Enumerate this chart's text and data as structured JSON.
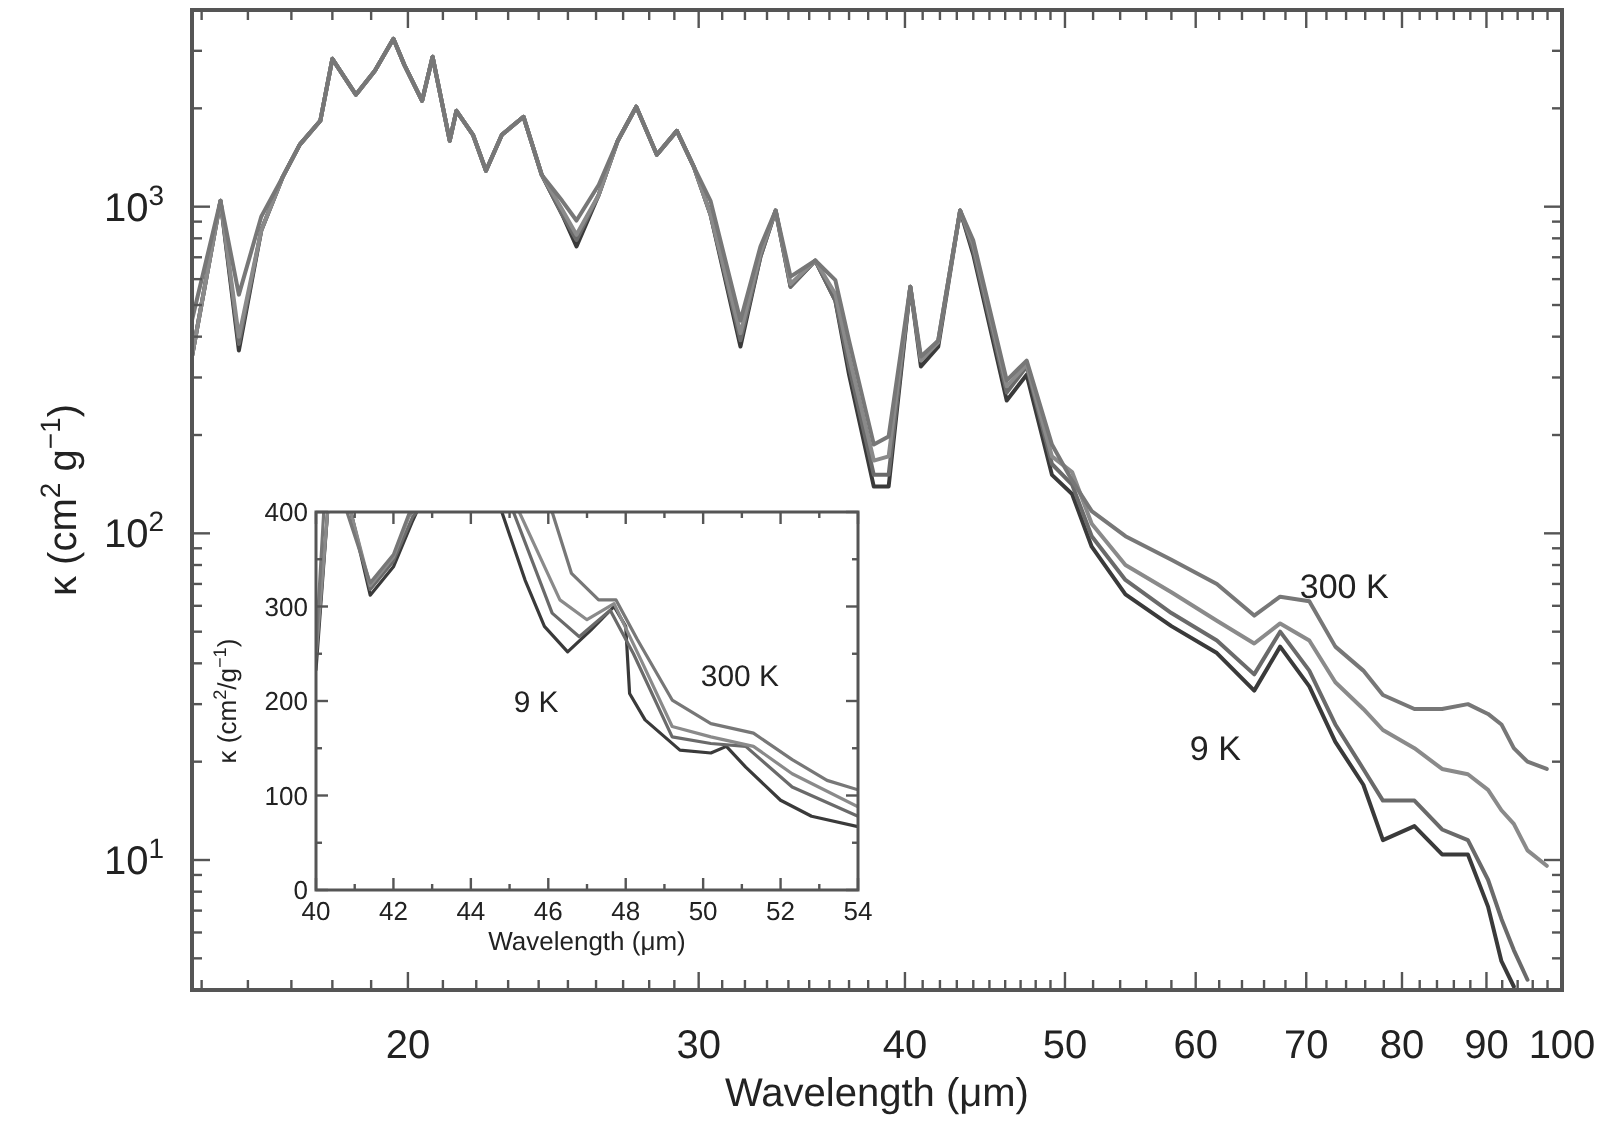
{
  "chart_data": [
    {
      "type": "line",
      "xlabel": "Wavelength (μm)",
      "ylabel": "κ (cm$^{2}$ g$^{−1}$)",
      "log": "xy",
      "xlim": [
        14.8,
        100
      ],
      "ylim": [
        4,
        4000
      ],
      "xticks": [
        {
          "value": 15,
          "label": null
        },
        {
          "value": 16,
          "label": null
        },
        {
          "value": 17,
          "label": null
        },
        {
          "value": 18,
          "label": null
        },
        {
          "value": 19,
          "label": null
        },
        20,
        {
          "value": 21,
          "label": null
        },
        {
          "value": 22,
          "label": null
        },
        {
          "value": 23,
          "label": null
        },
        {
          "value": 24,
          "label": null
        },
        {
          "value": 25,
          "label": null
        },
        {
          "value": 26,
          "label": null
        },
        {
          "value": 27,
          "label": null
        },
        {
          "value": 28,
          "label": null
        },
        {
          "value": 29,
          "label": null
        },
        30,
        {
          "value": 31,
          "label": null
        },
        {
          "value": 32,
          "label": null
        },
        {
          "value": 33,
          "label": null
        },
        {
          "value": 34,
          "label": null
        },
        {
          "value": 35,
          "label": null
        },
        {
          "value": 36,
          "label": null
        },
        {
          "value": 37,
          "label": null
        },
        {
          "value": 38,
          "label": null
        },
        {
          "value": 39,
          "label": null
        },
        40,
        {
          "value": 41,
          "label": null
        },
        {
          "value": 42,
          "label": null
        },
        {
          "value": 43,
          "label": null
        },
        {
          "value": 44,
          "label": null
        },
        {
          "value": 45,
          "label": null
        },
        {
          "value": 46,
          "label": null
        },
        {
          "value": 47,
          "label": null
        },
        {
          "value": 48,
          "label": null
        },
        {
          "value": 49,
          "label": null
        },
        50,
        {
          "value": 52,
          "label": null
        },
        {
          "value": 54,
          "label": null
        },
        {
          "value": 56,
          "label": null
        },
        {
          "value": 58,
          "label": null
        },
        60,
        {
          "value": 62,
          "label": null
        },
        {
          "value": 64,
          "label": null
        },
        {
          "value": 66,
          "label": null
        },
        {
          "value": 68,
          "label": null
        },
        70,
        {
          "value": 72,
          "label": null
        },
        {
          "value": 74,
          "label": null
        },
        {
          "value": 76,
          "label": null
        },
        {
          "value": 78,
          "label": null
        },
        80,
        {
          "value": 82,
          "label": null
        },
        {
          "value": 84,
          "label": null
        },
        {
          "value": 86,
          "label": null
        },
        {
          "value": 88,
          "label": null
        },
        90,
        {
          "value": 92,
          "label": null
        },
        {
          "value": 94,
          "label": null
        },
        {
          "value": 96,
          "label": null
        },
        {
          "value": 98,
          "label": null
        },
        100
      ],
      "yticks": [
        {
          "value": 5,
          "label": null
        },
        {
          "value": 6,
          "label": null
        },
        {
          "value": 7,
          "label": null
        },
        {
          "value": 8,
          "label": null
        },
        {
          "value": 9,
          "label": null
        },
        {
          "value": 10,
          "label": "10$^{1}$"
        },
        {
          "value": 20,
          "label": null
        },
        {
          "value": 30,
          "label": null
        },
        {
          "value": 40,
          "label": null
        },
        {
          "value": 50,
          "label": null
        },
        {
          "value": 60,
          "label": null
        },
        {
          "value": 70,
          "label": null
        },
        {
          "value": 80,
          "label": null
        },
        {
          "value": 90,
          "label": null
        },
        {
          "value": 100,
          "label": "10$^{2}$"
        },
        {
          "value": 200,
          "label": null
        },
        {
          "value": 300,
          "label": null
        },
        {
          "value": 400,
          "label": null
        },
        {
          "value": 500,
          "label": null
        },
        {
          "value": 600,
          "label": null
        },
        {
          "value": 700,
          "label": null
        },
        {
          "value": 800,
          "label": null
        },
        {
          "value": 900,
          "label": null
        },
        {
          "value": 1000,
          "label": "10$^{3}$"
        },
        {
          "value": 2000,
          "label": null
        },
        {
          "value": 3000,
          "label": null
        }
      ],
      "x": [
        14.8,
        15.4,
        15.8,
        16.3,
        16.8,
        17.2,
        17.7,
        18.0,
        18.6,
        19.1,
        19.6,
        19.9,
        20.4,
        20.7,
        21.2,
        21.4,
        21.9,
        22.3,
        22.8,
        23.5,
        24.1,
        24.8,
        25.3,
        26.1,
        26.8,
        27.5,
        28.3,
        29.1,
        29.8,
        30.5,
        31.8,
        32.7,
        33.4,
        34.1,
        35.3,
        36.3,
        37.0,
        38.3,
        39.1,
        40.3,
        40.9,
        41.9,
        43.2,
        44.0,
        46.1,
        47.4,
        49.1,
        50.5,
        51.9,
        54.4,
        58.0,
        61.8,
        65.1,
        67.5,
        70.3,
        72.9,
        75.8,
        77.9,
        81.4,
        84.6,
        87.7,
        90.2,
        91.9,
        93.5,
        95.3,
        97.9
      ],
      "series": [
        {
          "color": "#3a3a3a",
          "values": [
            348,
            1042,
            363,
            845,
            1236,
            1549,
            1832,
            2836,
            2202,
            2606,
            3265,
            2717,
            2109,
            2877,
            1592,
            1966,
            1660,
            1288,
            1660,
            1884,
            1253,
            946,
            755,
            1088,
            1592,
            2023,
            1442,
            1706,
            1324,
            946,
            373,
            703,
            973,
            569,
            684,
            516,
            306,
            139,
            139,
            569,
            324,
            373,
            973,
            713,
            255,
            306,
            151,
            132,
            91,
            65,
            52,
            43,
            33,
            45,
            34,
            23,
            17,
            11.5,
            12.7,
            10.4,
            10.4,
            7.2,
            4.9,
            4.1,
            null,
            null
          ]
        },
        {
          "color": "#6a6a6a",
          "values": [
            348,
            1042,
            380,
            845,
            1236,
            1549,
            1832,
            2836,
            2202,
            2606,
            3265,
            2717,
            2109,
            2877,
            1592,
            1966,
            1660,
            1288,
            1660,
            1884,
            1253,
            946,
            790,
            1088,
            1592,
            2023,
            1442,
            1706,
            1324,
            946,
            390,
            703,
            973,
            569,
            684,
            516,
            324,
            151,
            151,
            569,
            338,
            389,
            973,
            733,
            270,
            324,
            163,
            141,
            98,
            72,
            57,
            47,
            37,
            50,
            38,
            26,
            19,
            15.2,
            15.2,
            12.4,
            11.5,
            8.7,
            6.6,
            5.3,
            4.3,
            null
          ]
        },
        {
          "color": "#8a8a8a",
          "values": [
            348,
            1042,
            400,
            845,
            1236,
            1549,
            1832,
            2836,
            2202,
            2606,
            3265,
            2717,
            2109,
            2877,
            1592,
            1966,
            1660,
            1288,
            1660,
            1884,
            1253,
            980,
            820,
            1088,
            1592,
            2023,
            1442,
            1706,
            1324,
            946,
            410,
            720,
            973,
            580,
            684,
            540,
            348,
            167,
            172,
            569,
            338,
            384,
            973,
            765,
            282,
            329,
            172,
            154,
            107,
            80,
            66,
            54,
            46,
            53,
            47,
            35,
            29,
            25,
            22,
            19,
            18.3,
            16.4,
            14.2,
            12.9,
            10.7,
            9.6
          ]
        },
        {
          "color": "#777777",
          "values": [
            450,
            1042,
            538,
            931,
            1236,
            1549,
            1832,
            2836,
            2202,
            2606,
            3265,
            2717,
            2109,
            2877,
            1592,
            1966,
            1660,
            1288,
            1660,
            1884,
            1253,
            1042,
            907,
            1167,
            1592,
            2023,
            1442,
            1706,
            1324,
            1042,
            448,
            755,
            973,
            611,
            684,
            596,
            389,
            187,
            198,
            569,
            348,
            389,
            973,
            787,
            294,
            338,
            187,
            145,
            117,
            98,
            83,
            70,
            56,
            64,
            62,
            45,
            38,
            32,
            29,
            29,
            30,
            28,
            26,
            22,
            20,
            19
          ]
        }
      ],
      "annotations": [
        "300 K",
        "9 K"
      ]
    },
    {
      "type": "line",
      "xlabel": "Wavelength (μm)",
      "ylabel": "κ (cm$^{2}$/g$^{−1}$)",
      "xlim": [
        40,
        54
      ],
      "ylim": [
        0,
        400
      ],
      "xticks": [
        40,
        {
          "value": 41,
          "label": null
        },
        42,
        {
          "value": 43,
          "label": null
        },
        44,
        {
          "value": 45,
          "label": null
        },
        46,
        {
          "value": 47,
          "label": null
        },
        48,
        {
          "value": 49,
          "label": null
        },
        50,
        {
          "value": 51,
          "label": null
        },
        52,
        {
          "value": 53,
          "label": null
        },
        54
      ],
      "yticks": [
        0,
        {
          "value": 50,
          "label": null
        },
        100,
        {
          "value": 150,
          "label": null
        },
        200,
        {
          "value": 250,
          "label": null
        },
        300,
        {
          "value": 350,
          "label": null
        },
        400
      ],
      "series": [
        {
          "color": "#3a3a3a",
          "x": [
            40,
            40.3,
            40.5,
            40.9,
            41.4,
            42.0,
            42.5,
            42.6,
            43.5,
            44.8,
            45.4,
            45.9,
            46.5,
            47.1,
            47.7,
            48.0,
            48.1,
            48.5,
            49.4,
            50.2,
            50.6,
            51.1,
            52.0,
            52.8,
            54
          ],
          "values": [
            233,
            400,
            null,
            400,
            312,
            342,
            391,
            400,
            null,
            400,
            328,
            279,
            252,
            275,
            300,
            279,
            208,
            180,
            148,
            145,
            152,
            130,
            95,
            78,
            67
          ]
        },
        {
          "color": "#6a6a6a",
          "x": [
            40,
            40.3,
            40.5,
            40.9,
            41.4,
            42.0,
            42.5,
            42.6,
            43.5,
            45.1,
            46.1,
            46.8,
            47.6,
            48.2,
            49.2,
            50.2,
            51.1,
            52.3,
            54
          ],
          "values": [
            245,
            400,
            null,
            400,
            318,
            348,
            395,
            400,
            null,
            400,
            293,
            268,
            296,
            250,
            162,
            155,
            152,
            109,
            78
          ]
        },
        {
          "color": "#8a8a8a",
          "x": [
            40,
            40.3,
            40.5,
            40.9,
            41.4,
            42.0,
            42.4,
            42.5,
            43.5,
            45.25,
            46.3,
            47.0,
            47.7,
            48.4,
            49.2,
            50.2,
            51.3,
            52.3,
            54
          ],
          "values": [
            250,
            400,
            null,
            400,
            322,
            352,
            395,
            400,
            null,
            400,
            307,
            286,
            303,
            243,
            173,
            162,
            152,
            123,
            88
          ]
        },
        {
          "color": "#777777",
          "x": [
            40,
            40.2,
            40.5,
            40.8,
            41.4,
            42.0,
            42.4,
            42.5,
            43.5,
            46.1,
            46.6,
            47.3,
            47.75,
            48.3,
            49.2,
            50.2,
            51.3,
            52.3,
            53.2,
            54
          ],
          "values": [
            258,
            400,
            null,
            400,
            325,
            355,
            398,
            400,
            null,
            400,
            335,
            307,
            307,
            265,
            201,
            176,
            166,
            138,
            116,
            106
          ]
        }
      ],
      "annotations": [
        "9 K",
        "300 K"
      ]
    }
  ]
}
